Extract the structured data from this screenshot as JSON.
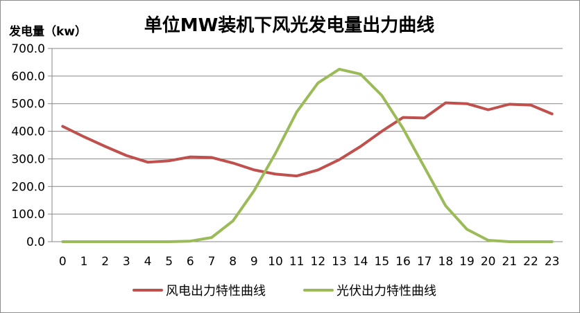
{
  "chart_data": {
    "type": "line",
    "title": "单位MW装机下风光发电量出力曲线",
    "ylabel": "发电量（kw）",
    "xlabel": "",
    "categories": [
      "0",
      "1",
      "2",
      "3",
      "4",
      "5",
      "6",
      "7",
      "8",
      "9",
      "10",
      "11",
      "12",
      "13",
      "14",
      "15",
      "16",
      "17",
      "18",
      "19",
      "20",
      "21",
      "22",
      "23"
    ],
    "ylim": [
      0,
      700
    ],
    "yticks": [
      "0.0",
      "100.0",
      "200.0",
      "300.0",
      "400.0",
      "500.0",
      "600.0",
      "700.0"
    ],
    "grid": true,
    "legend_position": "bottom",
    "series": [
      {
        "name": "风电出力特性曲线",
        "color": "#c0504d",
        "values": [
          418,
          380,
          345,
          312,
          288,
          293,
          307,
          305,
          285,
          260,
          245,
          238,
          260,
          297,
          345,
          400,
          450,
          448,
          503,
          500,
          478,
          498,
          495,
          463
        ]
      },
      {
        "name": "光伏出力特性曲线",
        "color": "#9bbb59",
        "values": [
          0,
          0,
          0,
          0,
          0,
          0,
          2,
          15,
          75,
          185,
          320,
          470,
          575,
          625,
          607,
          530,
          410,
          270,
          130,
          45,
          5,
          0,
          0,
          0
        ]
      }
    ]
  }
}
